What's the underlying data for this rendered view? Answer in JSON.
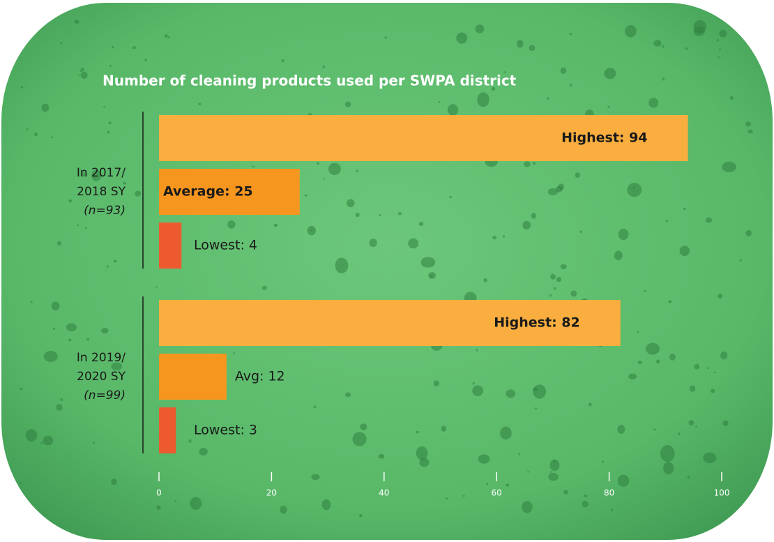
{
  "chart_data": {
    "type": "bar",
    "orientation": "horizontal",
    "title": "Number of cleaning products used per SWPA district",
    "groups": [
      {
        "label_lines": [
          "In 2017/",
          "2018 SY"
        ],
        "note": "(n=93)",
        "values": [
          94,
          25,
          4
        ],
        "value_labels": [
          "Highest: 94",
          "Average: 25",
          "Lowest: 4"
        ]
      },
      {
        "label_lines": [
          "In 2019/",
          "2020 SY"
        ],
        "note": "(n=99)",
        "values": [
          82,
          12,
          3
        ],
        "value_labels": [
          "Highest: 82",
          "Avg: 12",
          "Lowest: 3"
        ]
      }
    ],
    "colors": [
      "#f9ae3f",
      "#f7961f",
      "#ee5a30"
    ],
    "xlim": [
      0,
      100
    ],
    "xticks": [
      0,
      20,
      40,
      60,
      80,
      100
    ]
  }
}
